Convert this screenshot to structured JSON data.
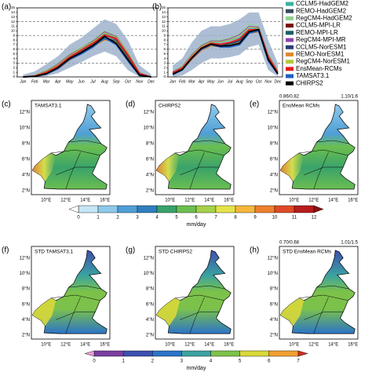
{
  "chart_data": [
    {
      "type": "line",
      "panel_label": "(a)",
      "categories": [
        "Jan",
        "Feb",
        "Mar",
        "Apr",
        "May",
        "Jun",
        "Jul",
        "Aug",
        "Sep",
        "Oct",
        "Nov",
        "Dec"
      ],
      "ylim": [
        0,
        15
      ],
      "yticks": [
        0,
        1,
        2,
        3,
        4,
        5,
        6,
        7,
        8,
        9,
        10,
        11,
        12,
        13,
        14,
        15
      ],
      "dashed_grid": [
        3,
        6,
        9,
        12
      ],
      "band": {
        "color": "#9fb3cc",
        "lower": [
          0,
          0,
          0.2,
          0.8,
          2,
          3.2,
          4.5,
          5.5,
          4.5,
          1.5,
          0,
          0
        ],
        "upper": [
          0.5,
          1.2,
          2.8,
          4.5,
          7,
          8.5,
          10.5,
          12.5,
          11.5,
          8,
          2.5,
          0.6
        ]
      },
      "series": [
        {
          "name": "CCLM5-HadGEM2",
          "color": "#3cb0a0",
          "values": [
            0,
            0.3,
            1.2,
            2.5,
            4.5,
            6,
            7.5,
            9.5,
            8.5,
            5,
            0.8,
            0
          ]
        },
        {
          "name": "REMO-HadGEM2",
          "color": "#34495e",
          "values": [
            0,
            0.2,
            0.8,
            2,
            4,
            5.5,
            7,
            8.5,
            8,
            4.5,
            0.6,
            0
          ]
        },
        {
          "name": "RegCM4-HadGEM2",
          "color": "#8fd18f",
          "values": [
            0,
            0.4,
            1.5,
            3,
            5,
            6.5,
            8,
            10,
            9,
            5.5,
            1,
            0.1
          ]
        },
        {
          "name": "CCLM5-MPI-LR",
          "color": "#7a0c0c",
          "values": [
            0,
            0.2,
            0.9,
            2.2,
            4.2,
            5.8,
            7.2,
            9,
            8.2,
            4.8,
            0.7,
            0
          ]
        },
        {
          "name": "REMO-MPI-LR",
          "color": "#1a5e63",
          "values": [
            0,
            0.2,
            0.7,
            1.8,
            3.8,
            5.2,
            6.8,
            8.2,
            7.8,
            4.2,
            0.5,
            0
          ]
        },
        {
          "name": "RegCM4-MPI-MR",
          "color": "#8e44ad",
          "values": [
            0,
            0.3,
            1.3,
            2.8,
            4.8,
            6.2,
            7.8,
            9.8,
            8.8,
            5.2,
            0.9,
            0
          ]
        },
        {
          "name": "CCLM5-NorESM1",
          "color": "#2c3e70",
          "values": [
            0,
            0.2,
            1,
            2.3,
            4.3,
            5.9,
            7.3,
            9.2,
            8.4,
            4.9,
            0.7,
            0
          ]
        },
        {
          "name": "REMO-NorESM1",
          "color": "#e08a2c",
          "values": [
            0,
            0.1,
            0.6,
            1.7,
            3.6,
            5,
            6.5,
            8,
            7.6,
            4,
            0.5,
            0
          ]
        },
        {
          "name": "RegCM4-NorESM1",
          "color": "#b5c83c",
          "values": [
            0,
            0.3,
            1.2,
            2.6,
            4.6,
            6.1,
            7.6,
            9.6,
            8.6,
            5.1,
            0.8,
            0
          ]
        },
        {
          "name": "EnsMean-RCMs",
          "color": "#e31a1c",
          "values": [
            0,
            0.2,
            1,
            2.3,
            4.3,
            5.8,
            7.3,
            9.1,
            8.3,
            4.8,
            0.7,
            0
          ]
        },
        {
          "name": "TAMSAT3.1",
          "color": "#1f5fbf",
          "values": [
            0,
            0.1,
            0.6,
            1.8,
            3.8,
            5,
            6.5,
            8.5,
            7,
            3.5,
            0.3,
            0
          ]
        },
        {
          "name": "CHIRPS2",
          "color": "#000000",
          "values": [
            0,
            0.1,
            0.7,
            2,
            4,
            5.3,
            6.8,
            8.8,
            7.3,
            3.8,
            0.4,
            0
          ]
        }
      ]
    },
    {
      "type": "line",
      "panel_label": "(b)",
      "categories": [
        "Jan",
        "Feb",
        "Mar",
        "Apr",
        "May",
        "Jun",
        "Jul",
        "Aug",
        "Sep",
        "Oct",
        "Nov",
        "Dec"
      ],
      "ylim": [
        0,
        15
      ],
      "yticks": [
        0,
        1,
        2,
        3,
        4,
        5,
        6,
        7,
        8,
        9,
        10,
        11,
        12,
        13,
        14,
        15
      ],
      "dashed_grid": [
        3,
        6,
        9,
        12
      ],
      "band": {
        "color": "#9fb3cc",
        "lower": [
          0,
          0.3,
          1.5,
          3,
          4,
          4,
          4.3,
          4.8,
          6.5,
          7,
          1.5,
          0.1
        ],
        "upper": [
          2.5,
          4,
          7.5,
          10,
          11,
          11,
          11.5,
          12.5,
          14,
          14,
          8,
          3
        ]
      },
      "series": [
        {
          "name": "CCLM5-HadGEM2",
          "color": "#3cb0a0",
          "values": [
            1,
            2,
            4.5,
            6.5,
            7.5,
            7.5,
            8,
            8.5,
            10.5,
            10.5,
            4.5,
            1.2
          ]
        },
        {
          "name": "REMO-HadGEM2",
          "color": "#34495e",
          "values": [
            0.8,
            1.7,
            4,
            6,
            7,
            6.8,
            7.2,
            7.8,
            9.8,
            10,
            4,
            0.9
          ]
        },
        {
          "name": "RegCM4-HadGEM2",
          "color": "#8fd18f",
          "values": [
            1.2,
            2.4,
            5,
            7,
            8,
            8,
            8.5,
            9.5,
            11.5,
            11,
            5,
            1.4
          ]
        },
        {
          "name": "CCLM5-MPI-LR",
          "color": "#7a0c0c",
          "values": [
            0.9,
            1.9,
            4.3,
            6.4,
            7.3,
            7.1,
            7.5,
            8.1,
            10.1,
            10.3,
            4.3,
            1
          ]
        },
        {
          "name": "REMO-MPI-LR",
          "color": "#1a5e63",
          "values": [
            0.7,
            1.6,
            3.9,
            5.9,
            6.9,
            6.7,
            7.1,
            7.7,
            9.7,
            9.9,
            3.9,
            0.8
          ]
        },
        {
          "name": "RegCM4-MPI-MR",
          "color": "#8e44ad",
          "values": [
            1.1,
            2.2,
            4.8,
            6.8,
            7.8,
            7.8,
            8.3,
            9.2,
            11,
            10.8,
            4.8,
            1.3
          ]
        },
        {
          "name": "CCLM5-NorESM1",
          "color": "#2c3e70",
          "values": [
            0.9,
            1.8,
            4.2,
            6.2,
            7.1,
            7,
            7.3,
            7.9,
            9.9,
            10.1,
            4.1,
            1
          ]
        },
        {
          "name": "REMO-NorESM1",
          "color": "#e08a2c",
          "values": [
            0.6,
            1.5,
            3.7,
            5.7,
            6.7,
            6.5,
            6.9,
            7.5,
            9.5,
            9.7,
            3.7,
            0.7
          ]
        },
        {
          "name": "RegCM4-NorESM1",
          "color": "#b5c83c",
          "values": [
            1,
            2.1,
            4.6,
            6.6,
            7.6,
            7.6,
            8.1,
            8.8,
            10.8,
            10.6,
            4.6,
            1.2
          ]
        },
        {
          "name": "EnsMean-RCMs",
          "color": "#e31a1c",
          "values": [
            0.9,
            1.9,
            4.3,
            6.3,
            7.3,
            7.1,
            7.5,
            8.2,
            10.2,
            10.3,
            4.3,
            1
          ]
        },
        {
          "name": "TAMSAT3.1",
          "color": "#1f5fbf",
          "values": [
            0.5,
            1.5,
            4,
            6,
            7,
            6.5,
            6.5,
            7,
            9.5,
            10,
            3.5,
            0.6
          ]
        },
        {
          "name": "CHIRPS2",
          "color": "#000000",
          "values": [
            0.6,
            1.6,
            4.1,
            6.2,
            7.1,
            6.7,
            6.8,
            7.3,
            9.8,
            10.3,
            3.8,
            0.7
          ]
        }
      ]
    }
  ],
  "maps": [
    {
      "label": "(c)",
      "title": "TAMSAT3.1",
      "kind": "mean"
    },
    {
      "label": "(d)",
      "title": "CHIRPS2",
      "kind": "mean"
    },
    {
      "label": "(e)",
      "title": "EnsMean RCMs",
      "kind": "mean",
      "stats": [
        "0.86/0.82",
        "1.10/1.6"
      ]
    },
    {
      "label": "(f)",
      "title": "STD TAMSAT3.1",
      "kind": "std"
    },
    {
      "label": "(g)",
      "title": "STD CHIRPS2",
      "kind": "std"
    },
    {
      "label": "(h)",
      "title": "STD EnsMean RCMs",
      "kind": "std",
      "stats": [
        "0.70/0.68",
        "1.01/1.5"
      ]
    }
  ],
  "lat_labels": [
    "12°N",
    "10°N",
    "8°N",
    "6°N",
    "4°N",
    "2°N"
  ],
  "lon_labels": [
    "10°E",
    "12°E",
    "14°E",
    "16°E"
  ],
  "colorbars": [
    {
      "ticks": [
        0,
        1,
        2,
        3,
        4,
        5,
        6,
        7,
        8,
        9,
        10,
        11,
        12
      ],
      "colors": [
        "#c6e6f5",
        "#8ec9ea",
        "#4f9fd6",
        "#2e7fbf",
        "#3aa26b",
        "#6bbf4f",
        "#a5d14a",
        "#e5e34a",
        "#f5b73b",
        "#ee7f2d",
        "#de4a26",
        "#b81c1c"
      ],
      "unit": "mm/day"
    },
    {
      "ticks": [
        0,
        1,
        2,
        3,
        4,
        5,
        6,
        7
      ],
      "colors": [
        "#7b3fa0",
        "#3e4fb0",
        "#2b74c8",
        "#3aa2a0",
        "#7cc24a",
        "#d8d83a",
        "#f0a030"
      ],
      "unit": "mm/day"
    }
  ]
}
